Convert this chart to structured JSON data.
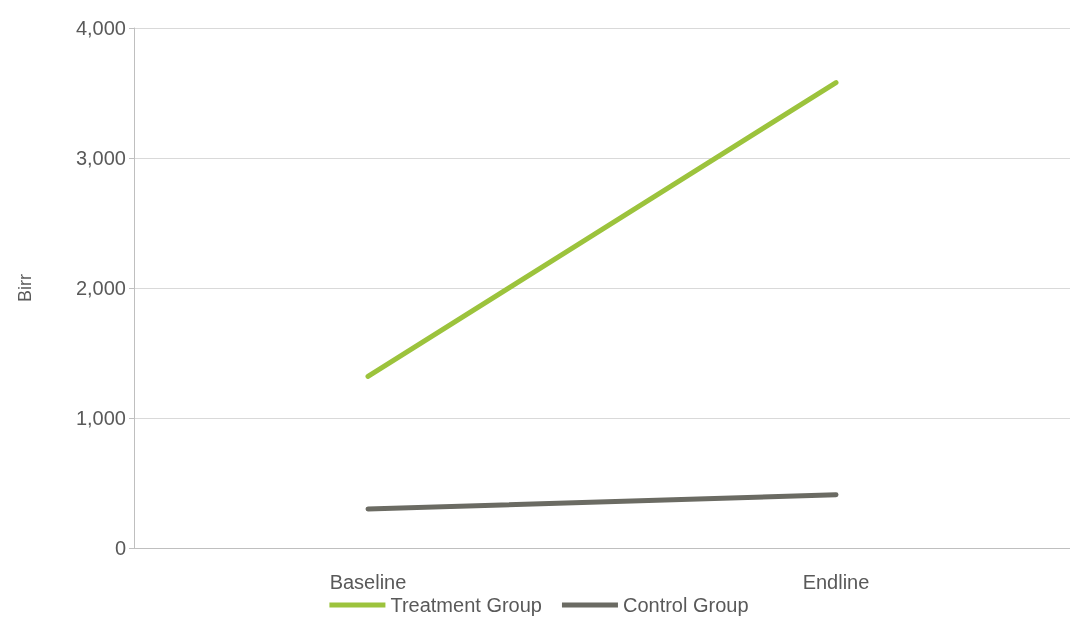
{
  "chart_data": {
    "type": "line",
    "ylabel": "Birr",
    "categories": [
      "Baseline",
      "Endline"
    ],
    "series": [
      {
        "name": "Treatment Group",
        "color": "#9cc33c",
        "values": [
          1320,
          3580
        ]
      },
      {
        "name": "Control Group",
        "color": "#6b6b63",
        "values": [
          300,
          410
        ]
      }
    ],
    "ylim": [
      0,
      4000
    ],
    "yticks": [
      {
        "value": 0,
        "label": "0"
      },
      {
        "value": 1000,
        "label": "1,000"
      },
      {
        "value": 2000,
        "label": "2,000"
      },
      {
        "value": 3000,
        "label": "3,000"
      },
      {
        "value": 4000,
        "label": "4,000"
      }
    ],
    "grid": "y",
    "legend": "bottom",
    "marker": "none",
    "line_style": "solid"
  }
}
